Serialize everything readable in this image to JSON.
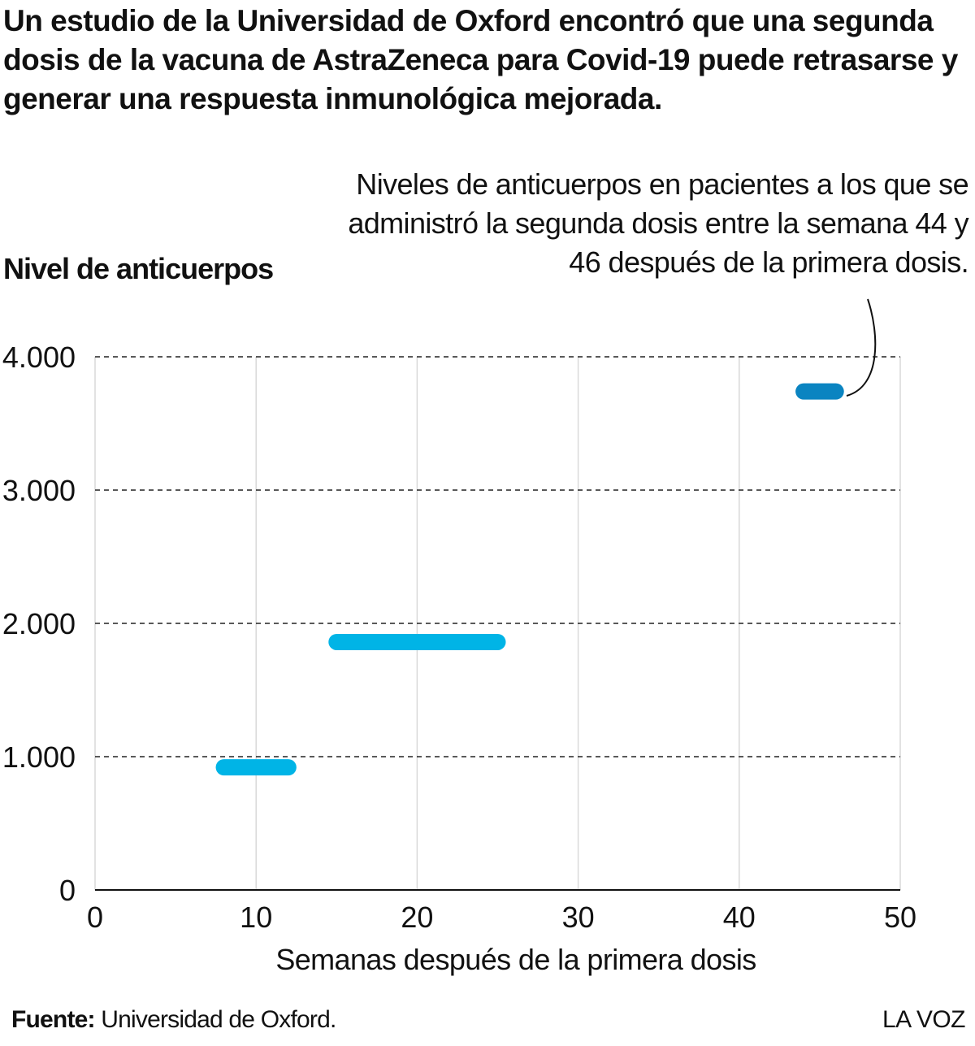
{
  "title": "Un estudio de la Universidad de Oxford encontró que una segunda dosis de la vacuna de AstraZeneca para Covid-19 puede retrasarse y generar una respuesta inmunológica mejorada.",
  "annotation": "Niveles de anticuerpos en pacientes a los que se administró la segunda dosis entre la semana 44 y 46 después de la primera dosis.",
  "source_label": "Fuente:",
  "source_text": "Universidad de Oxford.",
  "brand": "LA VOZ",
  "chart_data": {
    "type": "range-bar",
    "ylabel": "Nivel de anticuerpos",
    "xlabel": "Semanas después de la primera dosis",
    "xlim": [
      0,
      50
    ],
    "ylim": [
      0,
      4000
    ],
    "x_ticks": [
      "0",
      "10",
      "20",
      "30",
      "40",
      "50"
    ],
    "y_ticks": [
      "0",
      "1.000",
      "2.000",
      "3.000",
      "4.000"
    ],
    "grid": "horizontal dashed, vertical solid light",
    "bars": [
      {
        "x_start": 8,
        "x_end": 12,
        "y": 920,
        "color": "#00b4e6"
      },
      {
        "x_start": 15,
        "x_end": 25,
        "y": 1860,
        "color": "#00b4e6"
      },
      {
        "x_start": 44,
        "x_end": 46,
        "y": 3740,
        "color": "#0a84c1"
      }
    ]
  }
}
